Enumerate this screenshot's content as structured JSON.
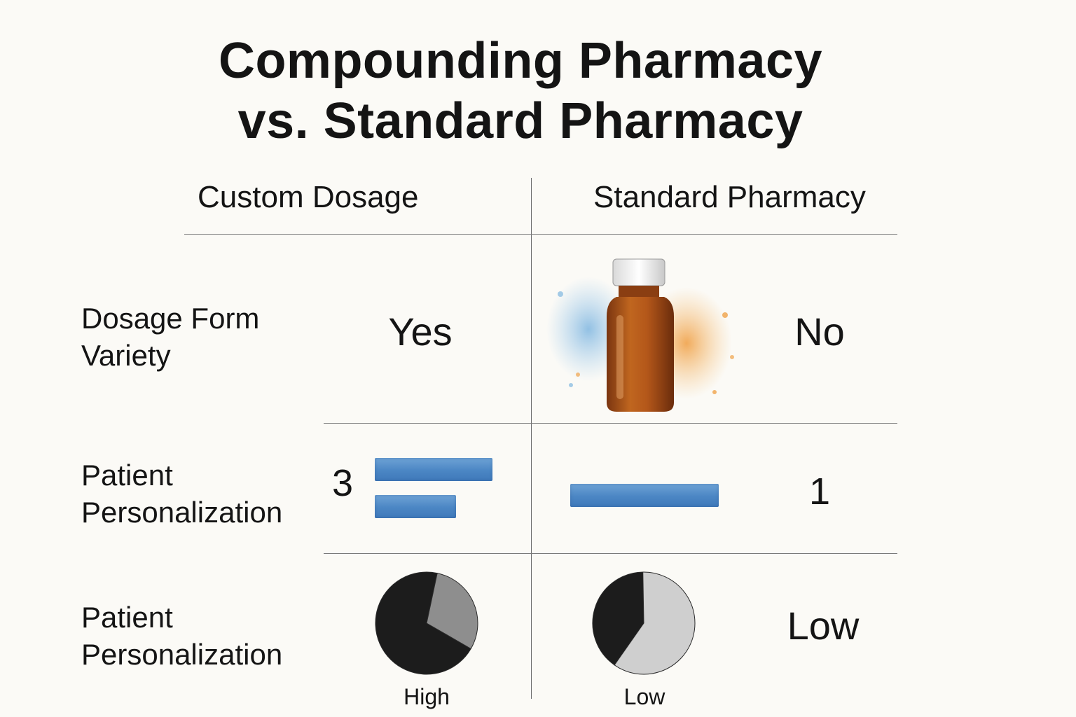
{
  "title_line1": "Compounding Pharmacy",
  "title_line2": "vs. Standard Pharmacy",
  "columns": {
    "left": "Custom Dosage",
    "right": "Standard Pharmacy"
  },
  "rows": [
    {
      "label_line1": "Dosage Form",
      "label_line2": "Variety",
      "left_value": "Yes",
      "right_value": "No"
    },
    {
      "label_line1": "Patient",
      "label_line2": "Personalization",
      "left_value": "3",
      "right_value": "1"
    },
    {
      "label_line1": "Patient",
      "label_line2": "Personalization",
      "left_caption": "High",
      "right_caption": "Low",
      "right_value": "Low"
    }
  ],
  "pies": {
    "left_dark_fraction": 0.7,
    "right_dark_fraction": 0.4
  },
  "colors": {
    "background": "#fbfaf6",
    "bar_blue": "#4b86c4",
    "pie_dark": "#1c1c1c",
    "pie_mid": "#8e8e8e",
    "pie_light": "#cfcfcf",
    "bottle_amber": "#b45a1c"
  },
  "icons": [
    "medicine-bottle-icon",
    "watercolor-splash"
  ]
}
